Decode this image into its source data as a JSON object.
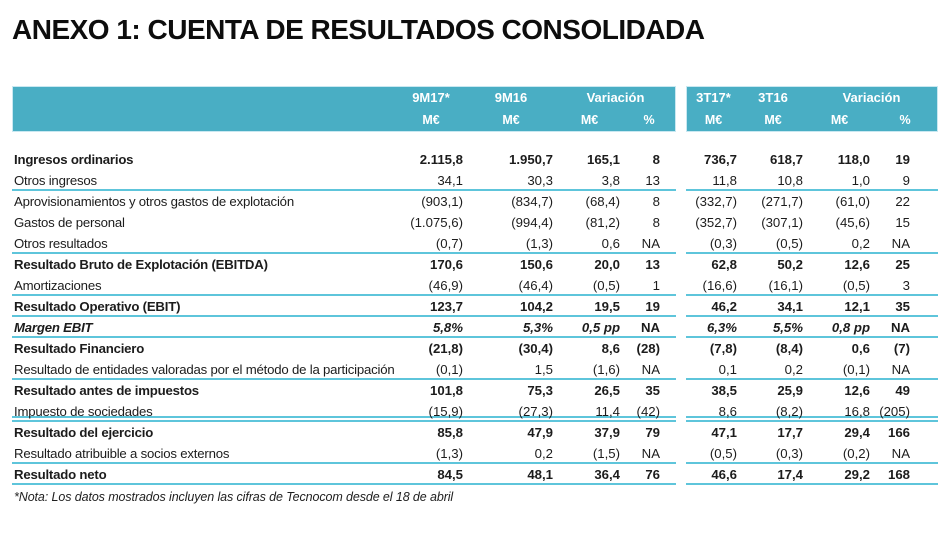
{
  "title": "ANEXO 1: CUENTA DE RESULTADOS CONSOLIDADA",
  "footnote": "*Nota: Los datos mostrados incluyen las cifras de Tecnocom desde el 18 de abril",
  "colors": {
    "header_background": "#49aec4",
    "separator_line": "#5ec5db",
    "header_text": "#ffffff",
    "body_text": "#1c1c1c"
  },
  "table": {
    "header": {
      "left": {
        "period1": "9M17*",
        "period2": "9M16",
        "variation": "Variación",
        "unit1": "M€",
        "unit2": "M€",
        "unit3": "M€",
        "unit_pct": "%"
      },
      "right": {
        "period1": "3T17*",
        "period2": "3T16",
        "variation": "Variación",
        "unit1": "M€",
        "unit2": "M€",
        "unit3": "M€",
        "unit_pct": "%"
      }
    },
    "column_keys": [
      "9m17-me",
      "9m16-me",
      "variacion-me",
      "variacion-pct",
      "3t17-me",
      "3t16-me",
      "variacion-q-me",
      "variacion-q-pct"
    ],
    "rows": [
      {
        "label": "Ingresos ordinarios",
        "bold": true,
        "values": [
          "2.115,8",
          "1.950,7",
          "165,1",
          "8",
          "736,7",
          "618,7",
          "118,0",
          "19"
        ]
      },
      {
        "label": "Otros ingresos",
        "values": [
          "34,1",
          "30,3",
          "3,8",
          "13",
          "11,8",
          "10,8",
          "1,0",
          "9"
        ],
        "border_bottom": "single"
      },
      {
        "label": "Aprovisionamientos y otros gastos de explotación",
        "values": [
          "(903,1)",
          "(834,7)",
          "(68,4)",
          "8",
          "(332,7)",
          "(271,7)",
          "(61,0)",
          "22"
        ]
      },
      {
        "label": "Gastos de personal",
        "values": [
          "(1.075,6)",
          "(994,4)",
          "(81,2)",
          "8",
          "(352,7)",
          "(307,1)",
          "(45,6)",
          "15"
        ]
      },
      {
        "label": "Otros resultados",
        "values": [
          "(0,7)",
          "(1,3)",
          "0,6",
          "NA",
          "(0,3)",
          "(0,5)",
          "0,2",
          "NA"
        ],
        "border_bottom": "single"
      },
      {
        "label": "Resultado Bruto de Explotación (EBITDA)",
        "bold": true,
        "values": [
          "170,6",
          "150,6",
          "20,0",
          "13",
          "62,8",
          "50,2",
          "12,6",
          "25"
        ]
      },
      {
        "label": "Amortizaciones",
        "values": [
          "(46,9)",
          "(46,4)",
          "(0,5)",
          "1",
          "(16,6)",
          "(16,1)",
          "(0,5)",
          "3"
        ],
        "border_bottom": "single"
      },
      {
        "label": "Resultado Operativo (EBIT)",
        "bold": true,
        "values": [
          "123,7",
          "104,2",
          "19,5",
          "19",
          "46,2",
          "34,1",
          "12,1",
          "35"
        ],
        "border_bottom": "single"
      },
      {
        "label": "Margen EBIT",
        "bold": true,
        "italic": true,
        "values": [
          "5,8%",
          "5,3%",
          "0,5 pp",
          "NA",
          "6,3%",
          "5,5%",
          "0,8 pp",
          "NA"
        ],
        "border_bottom": "single"
      },
      {
        "label": "Resultado Financiero",
        "bold": true,
        "values": [
          "(21,8)",
          "(30,4)",
          "8,6",
          "(28)",
          "(7,8)",
          "(8,4)",
          "0,6",
          "(7)"
        ]
      },
      {
        "label": "Resultado de entidades valoradas por el método de la participación",
        "values": [
          "(0,1)",
          "1,5",
          "(1,6)",
          "NA",
          "0,1",
          "0,2",
          "(0,1)",
          "NA"
        ],
        "border_bottom": "single"
      },
      {
        "label": "Resultado antes de impuestos",
        "bold": true,
        "values": [
          "101,8",
          "75,3",
          "26,5",
          "35",
          "38,5",
          "25,9",
          "12,6",
          "49"
        ]
      },
      {
        "label": "Impuesto de sociedades",
        "values": [
          "(15,9)",
          "(27,3)",
          "11,4",
          "(42)",
          "8,6",
          "(8,2)",
          "16,8",
          "(205)"
        ],
        "border_bottom": "double"
      },
      {
        "label": "Resultado del ejercicio",
        "bold": true,
        "values": [
          "85,8",
          "47,9",
          "37,9",
          "79",
          "47,1",
          "17,7",
          "29,4",
          "166"
        ]
      },
      {
        "label": "Resultado atribuible a socios externos",
        "values": [
          "(1,3)",
          "0,2",
          "(1,5)",
          "NA",
          "(0,5)",
          "(0,3)",
          "(0,2)",
          "NA"
        ],
        "border_bottom": "single"
      },
      {
        "label": "Resultado neto",
        "bold": true,
        "values": [
          "84,5",
          "48,1",
          "36,4",
          "76",
          "46,6",
          "17,4",
          "29,2",
          "168"
        ],
        "border_bottom": "single"
      }
    ]
  }
}
